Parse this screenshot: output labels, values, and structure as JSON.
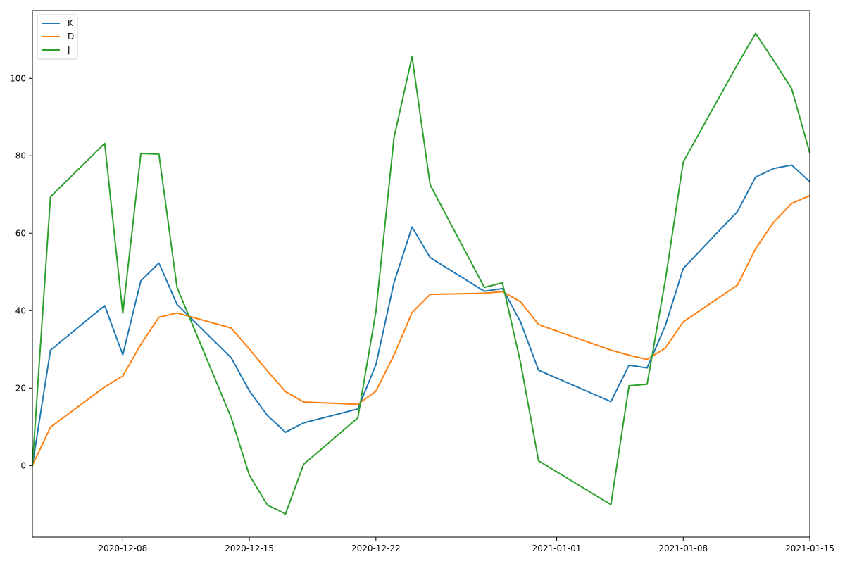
{
  "chart_data": {
    "type": "line",
    "title": "",
    "xlabel": "",
    "ylabel": "",
    "x_type": "date",
    "xlim": [
      "2020-12-03",
      "2021-01-15"
    ],
    "ylim": [
      -18.5,
      117.5
    ],
    "xticks": [
      {
        "date": "2020-12-08",
        "label": "2020-12-08"
      },
      {
        "date": "2020-12-15",
        "label": "2020-12-15"
      },
      {
        "date": "2020-12-22",
        "label": "2020-12-22"
      },
      {
        "date": "2021-01-01",
        "label": "2021-01-01"
      },
      {
        "date": "2021-01-08",
        "label": "2021-01-08"
      },
      {
        "date": "2021-01-15",
        "label": "2021-01-15"
      }
    ],
    "yticks": [
      0,
      20,
      40,
      60,
      80,
      100
    ],
    "grid": false,
    "legend": {
      "position": "top-left"
    },
    "dates": [
      "2020-12-03",
      "2020-12-04",
      "2020-12-07",
      "2020-12-08",
      "2020-12-09",
      "2020-12-10",
      "2020-12-11",
      "2020-12-14",
      "2020-12-15",
      "2020-12-16",
      "2020-12-17",
      "2020-12-18",
      "2020-12-21",
      "2020-12-22",
      "2020-12-23",
      "2020-12-24",
      "2020-12-25",
      "2020-12-28",
      "2020-12-29",
      "2020-12-30",
      "2020-12-31",
      "2021-01-04",
      "2021-01-05",
      "2021-01-06",
      "2021-01-07",
      "2021-01-08",
      "2021-01-11",
      "2021-01-12",
      "2021-01-13",
      "2021-01-14",
      "2021-01-15"
    ],
    "series": [
      {
        "name": "K",
        "color": "#1f77b4",
        "values": [
          0,
          29.8,
          41.3,
          28.6,
          47.7,
          52.3,
          41.6,
          27.8,
          19.3,
          12.9,
          8.6,
          11.0,
          14.6,
          26.0,
          47.2,
          61.6,
          53.7,
          45.0,
          45.7,
          37.1,
          24.6,
          16.5,
          25.9,
          25.2,
          36.0,
          50.9,
          65.6,
          74.5,
          76.7,
          77.6,
          73.3
        ]
      },
      {
        "name": "D",
        "color": "#ff7f0e",
        "values": [
          0,
          9.9,
          20.3,
          23.1,
          31.3,
          38.3,
          39.4,
          35.5,
          30.1,
          24.4,
          19.1,
          16.4,
          15.8,
          19.2,
          28.5,
          39.5,
          44.2,
          44.5,
          44.9,
          42.3,
          36.4,
          29.8,
          28.5,
          27.4,
          30.3,
          37.1,
          46.6,
          56.0,
          62.8,
          67.7,
          69.7
        ]
      },
      {
        "name": "J",
        "color": "#2ca02c",
        "values": [
          0,
          69.4,
          83.2,
          39.3,
          80.6,
          80.4,
          46.0,
          12.3,
          -2.5,
          -10.2,
          -12.5,
          0.3,
          12.3,
          39.7,
          84.6,
          105.6,
          72.5,
          46.0,
          47.2,
          26.6,
          1.2,
          -10.1,
          20.6,
          21.0,
          47.6,
          78.4,
          103.6,
          111.6,
          104.6,
          97.3,
          80.7
        ]
      }
    ]
  }
}
